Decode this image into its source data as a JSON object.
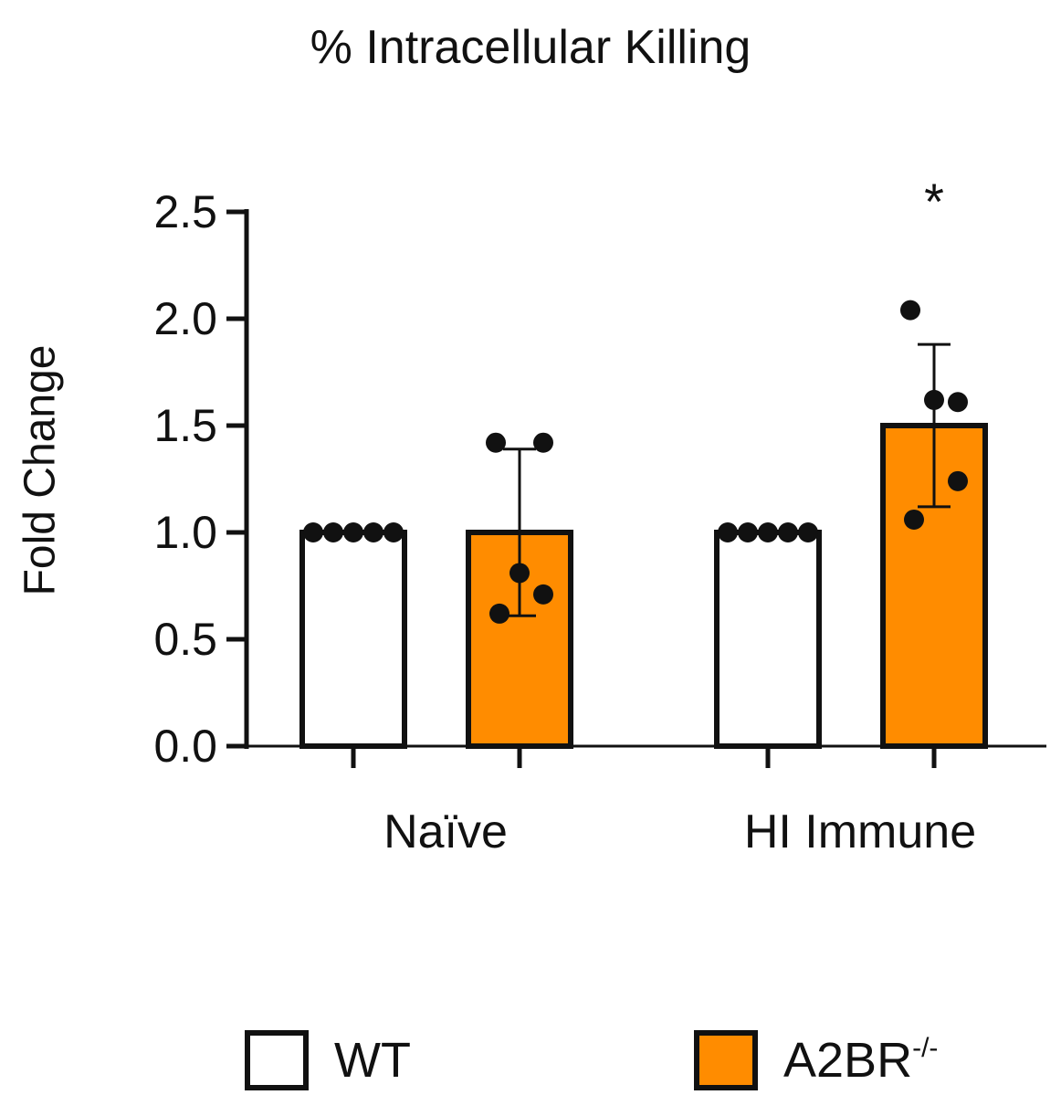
{
  "chart_data": {
    "type": "bar",
    "title": "% Intracellular Killing",
    "ylabel": "Fold Change",
    "xlabel": "",
    "ylim": [
      0,
      2.5
    ],
    "yticks": [
      "0.0",
      "0.5",
      "1.0",
      "1.5",
      "2.0",
      "2.5"
    ],
    "categories": [
      "Naïve",
      "HI Immune"
    ],
    "series": [
      {
        "name": "WT",
        "color": "#ffffff",
        "values": [
          1.0,
          1.0
        ],
        "error": [
          0,
          0
        ],
        "points": [
          [
            1.0,
            1.0,
            1.0,
            1.0,
            1.0
          ],
          [
            1.0,
            1.0,
            1.0,
            1.0,
            1.0
          ]
        ]
      },
      {
        "name": "A2BR-/-",
        "color": "#ff8c00",
        "values": [
          1.0,
          1.5
        ],
        "error": [
          0.39,
          0.38
        ],
        "points": [
          [
            1.42,
            1.42,
            0.81,
            0.71,
            0.62
          ],
          [
            2.04,
            1.61,
            1.62,
            1.24,
            1.06
          ]
        ]
      }
    ],
    "annotations": [
      {
        "text": "*",
        "category": "HI Immune",
        "series": "A2BR-/-"
      }
    ],
    "grid": false,
    "legend_position": "bottom"
  },
  "legend": {
    "wt_label": "WT",
    "ko_label_main": "A2BR",
    "ko_label_sup": "-/-"
  }
}
